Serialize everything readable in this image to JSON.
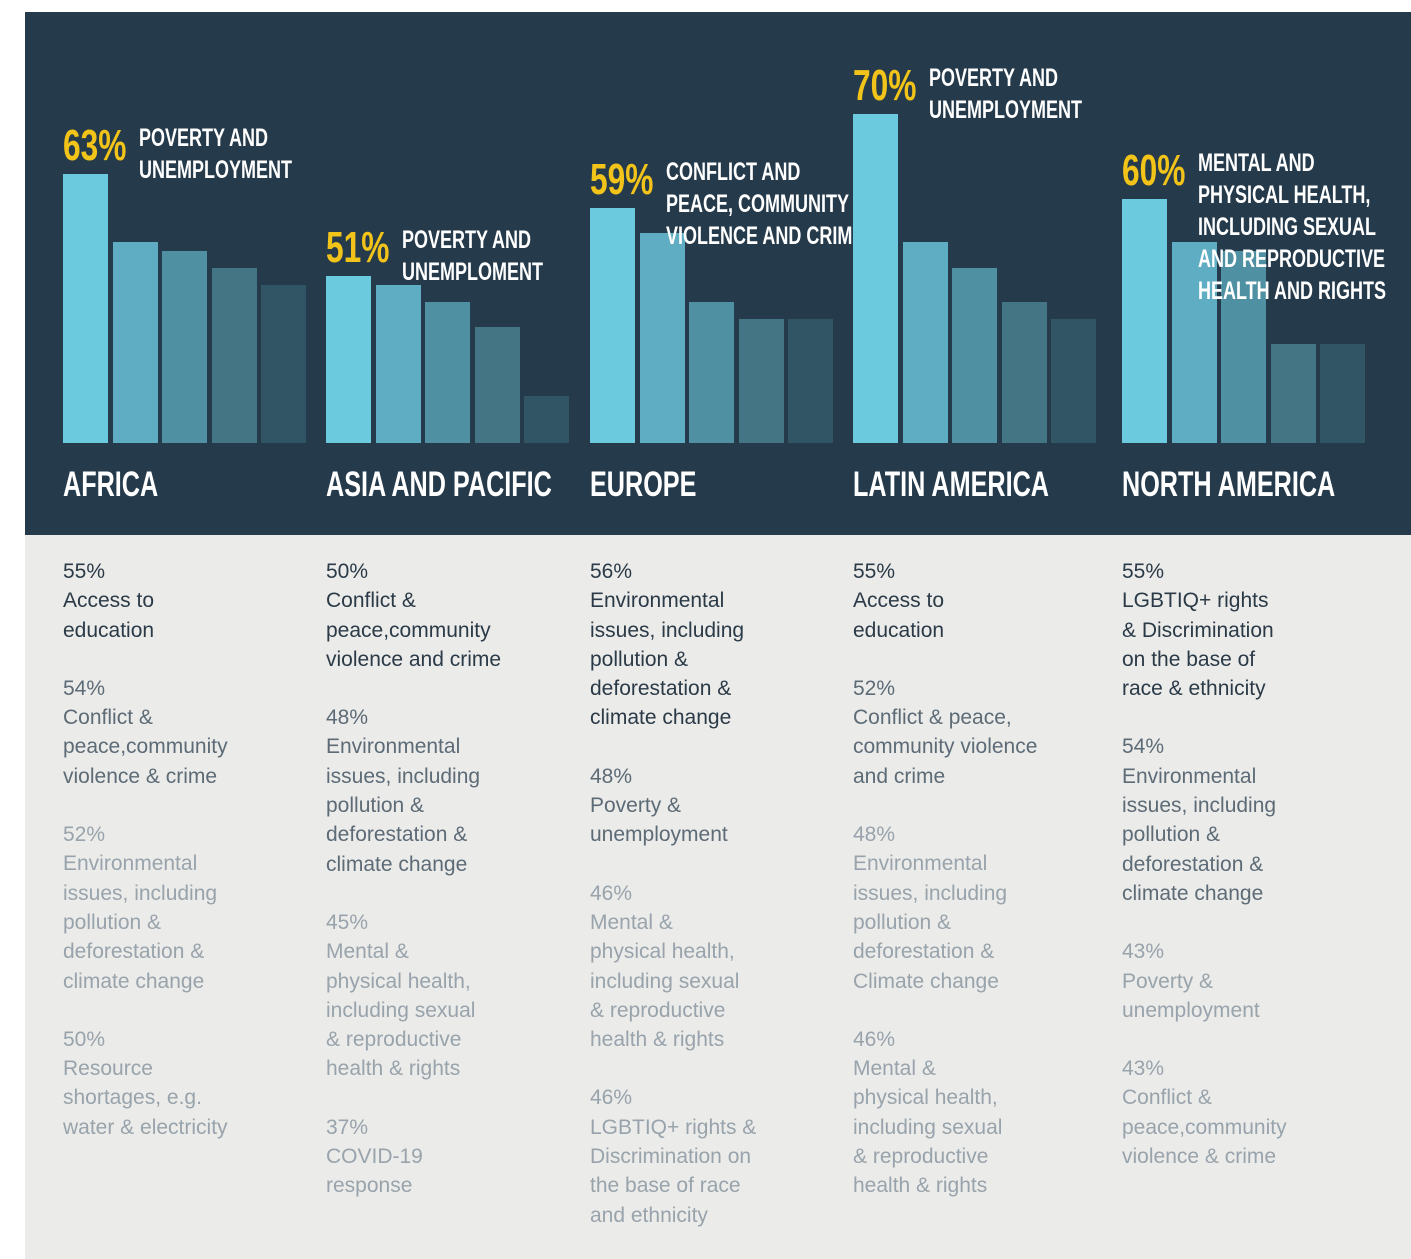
{
  "chart_data": {
    "type": "bar",
    "colors": [
      "#6ccadf",
      "#5fadc2",
      "#4f91a3",
      "#437585",
      "#325565"
    ],
    "regions": [
      {
        "name": "AFRICA",
        "top": {
          "value": 63,
          "value_label": "63%",
          "label_lines": [
            "POVERTY AND",
            "UNEMPLOYMENT"
          ]
        },
        "items": [
          {
            "value": 55,
            "value_label": "55%",
            "label_lines": [
              "Access to",
              "education"
            ]
          },
          {
            "value": 54,
            "value_label": "54%",
            "label_lines": [
              "Conflict &",
              "peace,community",
              "violence & crime"
            ]
          },
          {
            "value": 52,
            "value_label": "52%",
            "label_lines": [
              "Environmental",
              "issues, including",
              "pollution &",
              "deforestation &",
              "climate change"
            ]
          },
          {
            "value": 50,
            "value_label": "50%",
            "label_lines": [
              "Resource",
              "shortages, e.g.",
              "water & electricity"
            ]
          }
        ]
      },
      {
        "name": "ASIA AND PACIFIC",
        "top": {
          "value": 51,
          "value_label": "51%",
          "label_lines": [
            "POVERTY AND",
            "UNEMPLOMENT"
          ]
        },
        "items": [
          {
            "value": 50,
            "value_label": "50%",
            "label_lines": [
              "Conflict &",
              "peace,community",
              "violence and crime"
            ]
          },
          {
            "value": 48,
            "value_label": "48%",
            "label_lines": [
              "Environmental",
              "issues, including",
              "pollution &",
              "deforestation &",
              "climate change"
            ]
          },
          {
            "value": 45,
            "value_label": "45%",
            "label_lines": [
              "Mental &",
              "physical health,",
              "including sexual",
              "& reproductive",
              "health & rights"
            ]
          },
          {
            "value": 37,
            "value_label": "37%",
            "label_lines": [
              "COVID-19",
              "response"
            ]
          }
        ]
      },
      {
        "name": "EUROPE",
        "top": {
          "value": 59,
          "value_label": "59%",
          "label_lines": [
            "CONFLICT AND",
            "PEACE, COMMUNITY",
            "VIOLENCE AND CRIME"
          ]
        },
        "items": [
          {
            "value": 56,
            "value_label": "56%",
            "label_lines": [
              "Environmental",
              "issues, including",
              "pollution &",
              "deforestation &",
              "climate change"
            ]
          },
          {
            "value": 48,
            "value_label": "48%",
            "label_lines": [
              "Poverty &",
              "unemployment"
            ]
          },
          {
            "value": 46,
            "value_label": "46%",
            "label_lines": [
              "Mental &",
              "physical health,",
              "including sexual",
              "& reproductive",
              "health & rights"
            ]
          },
          {
            "value": 46,
            "value_label": "46%",
            "label_lines": [
              "LGBTIQ+ rights &",
              "Discrimination on",
              "the base of race",
              "and ethnicity"
            ]
          }
        ]
      },
      {
        "name": "LATIN AMERICA",
        "top": {
          "value": 70,
          "value_label": "70%",
          "label_lines": [
            "POVERTY AND",
            "UNEMPLOYMENT"
          ]
        },
        "items": [
          {
            "value": 55,
            "value_label": "55%",
            "label_lines": [
              "Access to",
              "education"
            ]
          },
          {
            "value": 52,
            "value_label": "52%",
            "label_lines": [
              "Conflict & peace,",
              "community violence",
              "and crime"
            ]
          },
          {
            "value": 48,
            "value_label": "48%",
            "label_lines": [
              "Environmental",
              "issues, including",
              "pollution &",
              "deforestation &",
              "Climate change"
            ]
          },
          {
            "value": 46,
            "value_label": "46%",
            "label_lines": [
              "Mental &",
              "physical health,",
              "including sexual",
              "& reproductive",
              "health & rights"
            ]
          }
        ]
      },
      {
        "name": "NORTH AMERICA",
        "top": {
          "value": 60,
          "value_label": "60%",
          "label_lines": [
            "MENTAL AND",
            "PHYSICAL HEALTH,",
            "INCLUDING SEXUAL",
            "AND REPRODUCTIVE",
            "HEALTH AND RIGHTS"
          ]
        },
        "items": [
          {
            "value": 55,
            "value_label": "55%",
            "label_lines": [
              "LGBTIQ+ rights",
              "& Discrimination",
              "on the base of",
              "race & ethnicity"
            ]
          },
          {
            "value": 54,
            "value_label": "54%",
            "label_lines": [
              "Environmental",
              "issues, including",
              "pollution &",
              "deforestation &",
              "climate change"
            ]
          },
          {
            "value": 43,
            "value_label": "43%",
            "label_lines": [
              "Poverty &",
              "unemployment"
            ]
          },
          {
            "value": 43,
            "value_label": "43%",
            "label_lines": [
              "Conflict &",
              "peace,community",
              "violence & crime"
            ]
          }
        ]
      }
    ]
  }
}
